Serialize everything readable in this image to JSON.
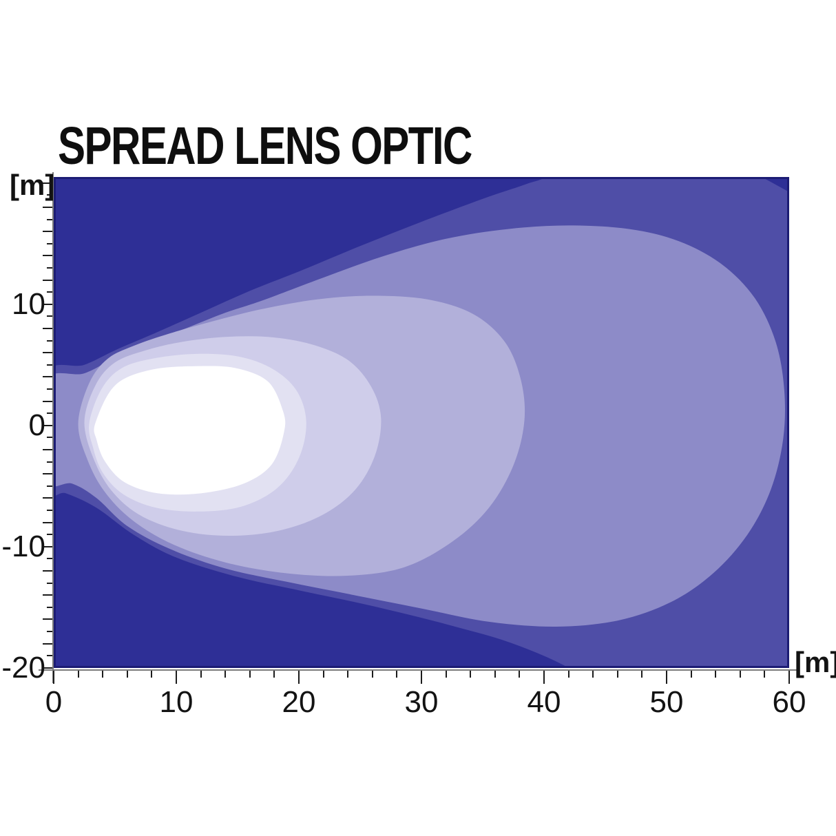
{
  "header": {
    "title": "SPREAD LENS OPTIC"
  },
  "axes": {
    "x_unit_label": "[m]",
    "y_unit_label": "[m]"
  },
  "chart_data": {
    "type": "heatmap",
    "subtype": "isolux-contour-beam-pattern",
    "title": "SPREAD LENS OPTIC",
    "xlabel": "[m]",
    "ylabel": "[m]",
    "xlim": [
      0,
      60
    ],
    "ylim": [
      -20,
      20.5
    ],
    "grid": false,
    "legend": "none",
    "x_axis": {
      "labeled_ticks": [
        0,
        10,
        20,
        30,
        40,
        50,
        60
      ],
      "minor_tick_step": 2,
      "unit": "[m]"
    },
    "y_axis": {
      "labeled_ticks": [
        10,
        0,
        -10,
        -20
      ],
      "minor_tick_step": 1,
      "medium_tick_step": 2,
      "unit": "[m]"
    },
    "colors": {
      "background_zone": "#2e2f96",
      "plot_border": "#1c1c74",
      "axis_line": "#7b7b7b",
      "tick": "#1c1c1c",
      "text": "#131313"
    },
    "contours": [
      {
        "name": "zone-1-outer",
        "color": "#4f4ea7",
        "points": [
          [
            -0.8,
            4.0
          ],
          [
            2.5,
            5.0
          ],
          [
            5,
            6.2
          ],
          [
            8,
            7.5
          ],
          [
            12,
            9.3
          ],
          [
            16,
            11.1
          ],
          [
            20,
            12.7
          ],
          [
            25,
            14.8
          ],
          [
            30,
            16.8
          ],
          [
            35,
            18.7
          ],
          [
            38.5,
            19.9
          ],
          [
            41,
            20.9
          ],
          [
            48,
            25
          ],
          [
            72,
            10
          ],
          [
            72,
            -10
          ],
          [
            50,
            -26
          ],
          [
            43.5,
            -20.9
          ],
          [
            38,
            -18.2
          ],
          [
            32,
            -16.4
          ],
          [
            26,
            -14.9
          ],
          [
            20,
            -13.6
          ],
          [
            15,
            -12.5
          ],
          [
            10,
            -10.9
          ],
          [
            6.5,
            -9.0
          ],
          [
            3.5,
            -6.8
          ],
          [
            1,
            -5.6
          ],
          [
            -0.8,
            -5.2
          ]
        ]
      },
      {
        "name": "zone-2",
        "color": "#8d8bc8",
        "points": [
          [
            -0.8,
            3.5
          ],
          [
            2.5,
            4.3
          ],
          [
            5,
            5.6
          ],
          [
            8,
            6.9
          ],
          [
            11,
            8.1
          ],
          [
            14,
            9.3
          ],
          [
            17,
            10.3
          ],
          [
            22,
            12.2
          ],
          [
            27,
            14.0
          ],
          [
            32,
            15.4
          ],
          [
            37,
            16.2
          ],
          [
            42,
            16.5
          ],
          [
            47,
            16.2
          ],
          [
            51,
            15.2
          ],
          [
            54.5,
            13.3
          ],
          [
            57.2,
            10.5
          ],
          [
            58.9,
            6.9
          ],
          [
            59.6,
            2.9
          ],
          [
            59.5,
            -1.2
          ],
          [
            58.5,
            -5.3
          ],
          [
            56.6,
            -9.0
          ],
          [
            53.8,
            -12.2
          ],
          [
            50.3,
            -14.6
          ],
          [
            46,
            -16.1
          ],
          [
            41,
            -16.6
          ],
          [
            35.5,
            -16.2
          ],
          [
            30,
            -15.1
          ],
          [
            24,
            -13.9
          ],
          [
            19,
            -12.9
          ],
          [
            14,
            -11.8
          ],
          [
            9.5,
            -10.2
          ],
          [
            6,
            -8.3
          ],
          [
            3.5,
            -6.0
          ],
          [
            1.5,
            -4.8
          ],
          [
            -0.8,
            -4.4
          ]
        ]
      },
      {
        "name": "zone-3",
        "color": "#b2b0da",
        "points": [
          [
            2.0,
            0.2
          ],
          [
            2.9,
            3.5
          ],
          [
            4.4,
            5.5
          ],
          [
            6.6,
            6.6
          ],
          [
            9.5,
            7.6
          ],
          [
            13,
            8.6
          ],
          [
            17,
            9.6
          ],
          [
            21.5,
            10.4
          ],
          [
            26,
            10.7
          ],
          [
            30.5,
            10.4
          ],
          [
            34.2,
            9.2
          ],
          [
            36.8,
            6.9
          ],
          [
            38.1,
            3.8
          ],
          [
            38.4,
            0.4
          ],
          [
            37.5,
            -3.3
          ],
          [
            35.5,
            -6.8
          ],
          [
            32.5,
            -9.6
          ],
          [
            28.6,
            -11.7
          ],
          [
            24,
            -12.4
          ],
          [
            19,
            -12.2
          ],
          [
            14,
            -11.3
          ],
          [
            9.7,
            -9.8
          ],
          [
            6.4,
            -7.8
          ],
          [
            4.1,
            -5.4
          ],
          [
            2.7,
            -2.7
          ]
        ]
      },
      {
        "name": "zone-4",
        "color": "#cfcdea",
        "points": [
          [
            2.5,
            0.2
          ],
          [
            3.4,
            3.3
          ],
          [
            5.0,
            5.2
          ],
          [
            7.5,
            6.2
          ],
          [
            10.5,
            6.9
          ],
          [
            14,
            7.3
          ],
          [
            17.5,
            7.3
          ],
          [
            21,
            6.7
          ],
          [
            24,
            5.4
          ],
          [
            25.9,
            3.2
          ],
          [
            26.7,
            0.6
          ],
          [
            26.2,
            -2.5
          ],
          [
            24.6,
            -5.3
          ],
          [
            21.9,
            -7.4
          ],
          [
            18.3,
            -8.7
          ],
          [
            14.3,
            -9.1
          ],
          [
            10.5,
            -8.7
          ],
          [
            7.2,
            -7.5
          ],
          [
            4.9,
            -5.6
          ],
          [
            3.4,
            -3.1
          ]
        ]
      },
      {
        "name": "zone-5",
        "color": "#e2e1f2",
        "points": [
          [
            2.9,
            0.2
          ],
          [
            3.9,
            3.0
          ],
          [
            5.5,
            4.7
          ],
          [
            8,
            5.5
          ],
          [
            11.5,
            5.9
          ],
          [
            15,
            5.7
          ],
          [
            17.8,
            4.7
          ],
          [
            19.8,
            2.9
          ],
          [
            20.6,
            0.3
          ],
          [
            20.0,
            -2.7
          ],
          [
            18.2,
            -5.2
          ],
          [
            15.3,
            -6.7
          ],
          [
            11.8,
            -7.1
          ],
          [
            8.4,
            -6.8
          ],
          [
            5.7,
            -5.7
          ],
          [
            4.0,
            -3.9
          ],
          [
            3.2,
            -1.8
          ]
        ]
      },
      {
        "name": "core-hotspot",
        "color": "#ffffff",
        "points": [
          [
            3.4,
            0.2
          ],
          [
            5,
            3.3
          ],
          [
            8,
            4.6
          ],
          [
            12,
            4.9
          ],
          [
            15,
            4.7
          ],
          [
            17.5,
            3.6
          ],
          [
            18.7,
            1.2
          ],
          [
            18.8,
            -0.5
          ],
          [
            17.8,
            -3.2
          ],
          [
            15.5,
            -4.8
          ],
          [
            12,
            -5.6
          ],
          [
            8.5,
            -5.6
          ],
          [
            5.8,
            -4.7
          ],
          [
            4.2,
            -3.0
          ],
          [
            3.5,
            -1.2
          ]
        ]
      }
    ]
  }
}
